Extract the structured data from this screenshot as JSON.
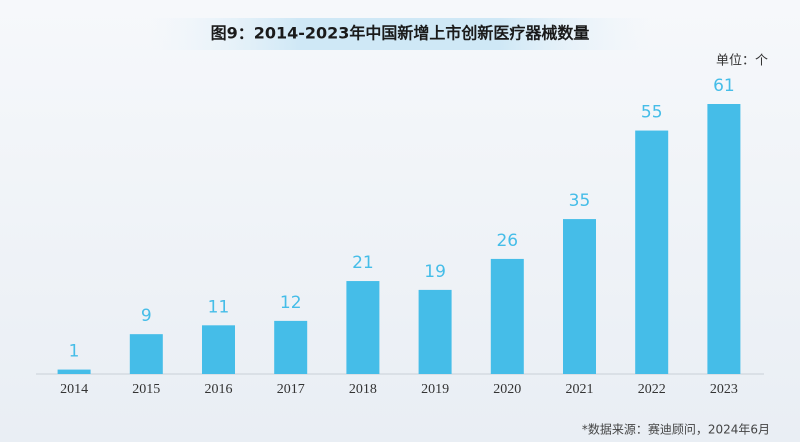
{
  "chart_data": {
    "type": "bar",
    "title": "图9：2014-2023年中国新增上市创新医疗器械数量",
    "unit": "单位：个",
    "source": "*数据来源：赛迪顾问，2024年6月",
    "categories": [
      "2014",
      "2015",
      "2016",
      "2017",
      "2018",
      "2019",
      "2020",
      "2021",
      "2022",
      "2023"
    ],
    "values": [
      1,
      9,
      11,
      12,
      21,
      19,
      26,
      35,
      55,
      61
    ],
    "color": "#45bde8"
  }
}
